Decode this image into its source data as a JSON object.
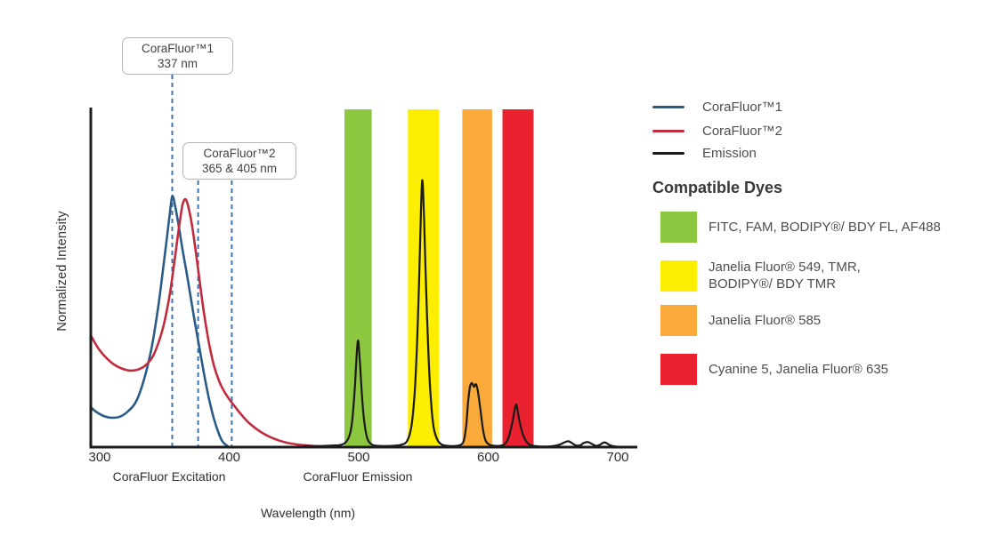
{
  "chart_data": {
    "type": "line",
    "title": "",
    "xlabel": "Wavelength (nm)",
    "ylabel": "Normalized Intensity",
    "x_ticks": [
      300,
      400,
      500,
      600,
      700
    ],
    "x_range_nm": [
      293,
      716
    ],
    "ylim": [
      0,
      1.05
    ],
    "grid": false,
    "legend_position": "right",
    "section_labels": [
      {
        "text": "CoraFluor Excitation",
        "at_nm": 354
      },
      {
        "text": "CoraFluor Emission",
        "at_nm": 500
      }
    ],
    "markers": [
      {
        "title": "CoraFluor™1",
        "value": "337 nm",
        "lines_at_nm": [
          356
        ]
      },
      {
        "title": "CoraFluor™2",
        "value": "365 & 405 nm",
        "lines_at_nm": [
          376,
          402
        ]
      }
    ],
    "marker_line_color": "#3d76ad",
    "bands": [
      {
        "dye": "FITC, FAM, BODIPY®/ BDY FL, AF488",
        "color": "#8dc63f",
        "from_nm": 489,
        "to_nm": 510
      },
      {
        "dye": "Janelia Fluor® 549, TMR, BODIPY®/ BDY TMR",
        "color": "#fcee00",
        "from_nm": 538,
        "to_nm": 562
      },
      {
        "dye": "Janelia Fluor® 585",
        "color": "#f9aa3b",
        "from_nm": 580,
        "to_nm": 603
      },
      {
        "dye": "Cyanine 5, Janelia Fluor® 635",
        "color": "#ea212e",
        "from_nm": 611,
        "to_nm": 635
      }
    ],
    "series": [
      {
        "name": "CoraFluor™1",
        "color": "#2b5c88",
        "points": [
          [
            293,
            0.15
          ],
          [
            298,
            0.13
          ],
          [
            304,
            0.115
          ],
          [
            310,
            0.11
          ],
          [
            316,
            0.115
          ],
          [
            322,
            0.135
          ],
          [
            328,
            0.17
          ],
          [
            334,
            0.25
          ],
          [
            340,
            0.37
          ],
          [
            345,
            0.52
          ],
          [
            349,
            0.67
          ],
          [
            352,
            0.79
          ],
          [
            354,
            0.87
          ],
          [
            356,
            0.94
          ],
          [
            358,
            0.91
          ],
          [
            361,
            0.83
          ],
          [
            364,
            0.74
          ],
          [
            368,
            0.63
          ],
          [
            372,
            0.51
          ],
          [
            376,
            0.4
          ],
          [
            380,
            0.29
          ],
          [
            384,
            0.19
          ],
          [
            388,
            0.11
          ],
          [
            392,
            0.05
          ],
          [
            395,
            0.02
          ],
          [
            399,
            0.003
          ]
        ]
      },
      {
        "name": "CoraFluor™2",
        "color": "#c22b3d",
        "points": [
          [
            293,
            0.42
          ],
          [
            299,
            0.37
          ],
          [
            305,
            0.335
          ],
          [
            311,
            0.31
          ],
          [
            317,
            0.295
          ],
          [
            323,
            0.287
          ],
          [
            329,
            0.29
          ],
          [
            335,
            0.305
          ],
          [
            341,
            0.34
          ],
          [
            346,
            0.4
          ],
          [
            350,
            0.47
          ],
          [
            354,
            0.57
          ],
          [
            357,
            0.67
          ],
          [
            360,
            0.78
          ],
          [
            362,
            0.85
          ],
          [
            364,
            0.91
          ],
          [
            366,
            0.93
          ],
          [
            368,
            0.91
          ],
          [
            371,
            0.84
          ],
          [
            374,
            0.74
          ],
          [
            377,
            0.63
          ],
          [
            380,
            0.52
          ],
          [
            384,
            0.4
          ],
          [
            388,
            0.31
          ],
          [
            392,
            0.25
          ],
          [
            396,
            0.21
          ],
          [
            400,
            0.18
          ],
          [
            405,
            0.148
          ],
          [
            410,
            0.118
          ],
          [
            415,
            0.092
          ],
          [
            420,
            0.072
          ],
          [
            426,
            0.052
          ],
          [
            432,
            0.037
          ],
          [
            439,
            0.024
          ],
          [
            446,
            0.015
          ],
          [
            454,
            0.009
          ],
          [
            463,
            0.005
          ],
          [
            473,
            0.002
          ],
          [
            484,
            0.001
          ]
        ]
      },
      {
        "name": "Emission",
        "color": "#1a1a1a",
        "points": [
          [
            458,
            0.004
          ],
          [
            470,
            0.004
          ],
          [
            480,
            0.006
          ],
          [
            486,
            0.008
          ],
          [
            490,
            0.018
          ],
          [
            493,
            0.045
          ],
          [
            495,
            0.1
          ],
          [
            497,
            0.22
          ],
          [
            498,
            0.31
          ],
          [
            499.5,
            0.4
          ],
          [
            501,
            0.31
          ],
          [
            503,
            0.16
          ],
          [
            505,
            0.07
          ],
          [
            507,
            0.028
          ],
          [
            510,
            0.01
          ],
          [
            514,
            0.005
          ],
          [
            520,
            0.004
          ],
          [
            527,
            0.005
          ],
          [
            533,
            0.009
          ],
          [
            537,
            0.02
          ],
          [
            540,
            0.06
          ],
          [
            542,
            0.13
          ],
          [
            544,
            0.27
          ],
          [
            546,
            0.52
          ],
          [
            547.5,
            0.78
          ],
          [
            549,
            1.0
          ],
          [
            550.5,
            0.85
          ],
          [
            552,
            0.6
          ],
          [
            554,
            0.33
          ],
          [
            556,
            0.16
          ],
          [
            558,
            0.07
          ],
          [
            561,
            0.025
          ],
          [
            564,
            0.01
          ],
          [
            568,
            0.005
          ],
          [
            573,
            0.004
          ],
          [
            578,
            0.007
          ],
          [
            581,
            0.022
          ],
          [
            583,
            0.08
          ],
          [
            584.5,
            0.17
          ],
          [
            586,
            0.228
          ],
          [
            587.5,
            0.24
          ],
          [
            589,
            0.226
          ],
          [
            590.5,
            0.236
          ],
          [
            592,
            0.21
          ],
          [
            594,
            0.14
          ],
          [
            596,
            0.065
          ],
          [
            598,
            0.024
          ],
          [
            601,
            0.009
          ],
          [
            605,
            0.005
          ],
          [
            609,
            0.005
          ],
          [
            613,
            0.012
          ],
          [
            616,
            0.04
          ],
          [
            619,
            0.1
          ],
          [
            621.5,
            0.16
          ],
          [
            624,
            0.1
          ],
          [
            627,
            0.044
          ],
          [
            630,
            0.017
          ],
          [
            633,
            0.007
          ],
          [
            638,
            0.003
          ],
          [
            644,
            0.002
          ],
          [
            650,
            0.004
          ],
          [
            655,
            0.009
          ],
          [
            659,
            0.018
          ],
          [
            662,
            0.022
          ],
          [
            665,
            0.014
          ],
          [
            668,
            0.006
          ],
          [
            671,
            0.007
          ],
          [
            674,
            0.016
          ],
          [
            677,
            0.019
          ],
          [
            680,
            0.012
          ],
          [
            683,
            0.005
          ],
          [
            686,
            0.008
          ],
          [
            689,
            0.017
          ],
          [
            691,
            0.016
          ],
          [
            694,
            0.007
          ],
          [
            697,
            0.003
          ],
          [
            702,
            0.001
          ],
          [
            712,
            0.001
          ]
        ]
      }
    ]
  },
  "legend": {
    "items": [
      {
        "label": "CoraFluor™1",
        "color": "#2b5c88"
      },
      {
        "label": "CoraFluor™2",
        "color": "#c22b3d"
      },
      {
        "label": "Emission",
        "color": "#1a1a1a"
      }
    ]
  },
  "dyes": {
    "heading": "Compatible Dyes",
    "items": [
      {
        "color": "#8dc63f",
        "line1": "FITC, FAM, BODIPY®/ BDY FL, AF488",
        "line2": ""
      },
      {
        "color": "#fcee00",
        "line1": "Janelia Fluor® 549, TMR,",
        "line2": "BODIPY®/ BDY TMR"
      },
      {
        "color": "#f9aa3b",
        "line1": "Janelia Fluor® 585",
        "line2": ""
      },
      {
        "color": "#ea212e",
        "line1": "Cyanine 5, Janelia Fluor® 635",
        "line2": ""
      }
    ]
  }
}
